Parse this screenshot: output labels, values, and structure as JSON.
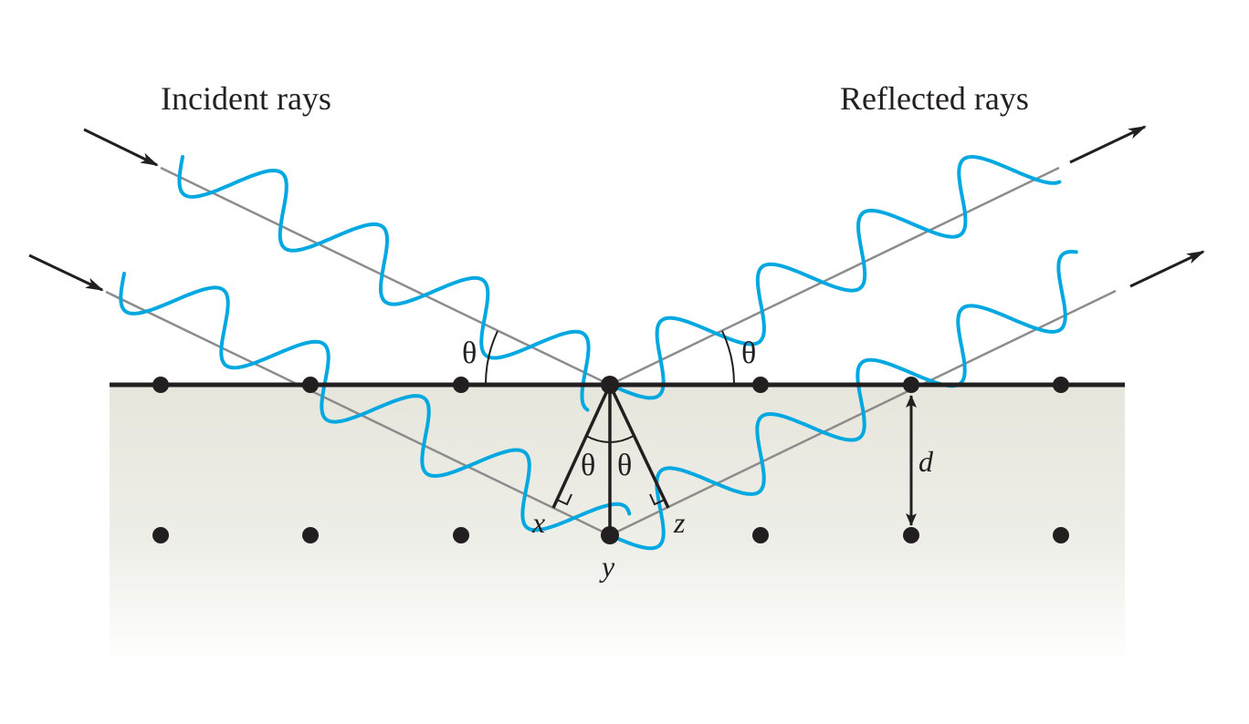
{
  "labels": {
    "incident": "Incident rays",
    "reflected": "Reflected rays",
    "theta": "θ",
    "d": "d",
    "x": "x",
    "y": "y",
    "z": "z"
  },
  "colors": {
    "wave": "#00a8e1",
    "ray": "#8c8c8c",
    "ink": "#231f20",
    "surface_top": "#e8e8df",
    "surface_bottom": "#ffffff"
  }
}
